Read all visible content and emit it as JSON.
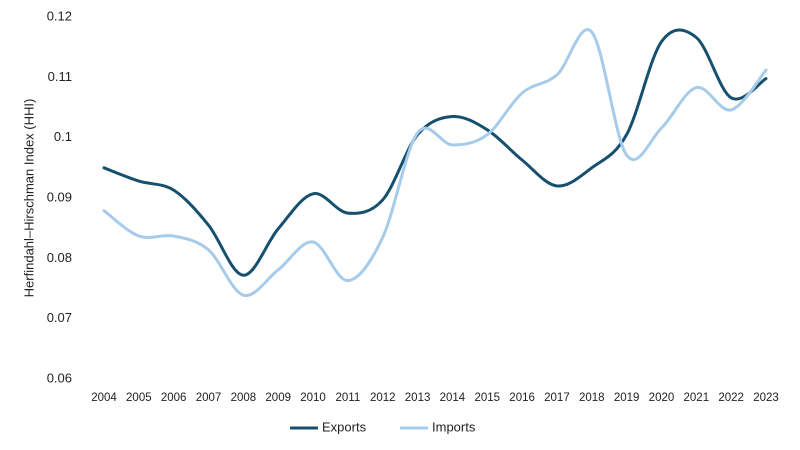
{
  "chart_data": {
    "type": "line",
    "y_label": "Herfindahl–Hirschman Index (HHI)",
    "categories": [
      "2004",
      "2005",
      "2006",
      "2007",
      "2008",
      "2009",
      "2010",
      "2011",
      "2012",
      "2013",
      "2014",
      "2015",
      "2016",
      "2017",
      "2018",
      "2019",
      "2020",
      "2021",
      "2022",
      "2023"
    ],
    "series": [
      {
        "name": "Exports",
        "color": "#17506f",
        "values": [
          0.095,
          0.0928,
          0.0913,
          0.0855,
          0.0772,
          0.0849,
          0.0907,
          0.0875,
          0.0897,
          0.1005,
          0.1035,
          0.1013,
          0.0963,
          0.092,
          0.095,
          0.1005,
          0.1159,
          0.1166,
          0.1066,
          0.1098
        ]
      },
      {
        "name": "Imports",
        "color": "#a7cbea",
        "values": [
          0.0879,
          0.0837,
          0.0837,
          0.0814,
          0.0739,
          0.0781,
          0.0827,
          0.0763,
          0.0835,
          0.1008,
          0.0988,
          0.1005,
          0.1074,
          0.1104,
          0.1175,
          0.0971,
          0.1016,
          0.1083,
          0.1046,
          0.1112
        ]
      }
    ],
    "ylim": [
      0.06,
      0.12
    ],
    "yticks": [
      0.06,
      0.07,
      0.08,
      0.09,
      0.1,
      0.11,
      0.12
    ],
    "smooth": true,
    "legend": "bottom"
  }
}
